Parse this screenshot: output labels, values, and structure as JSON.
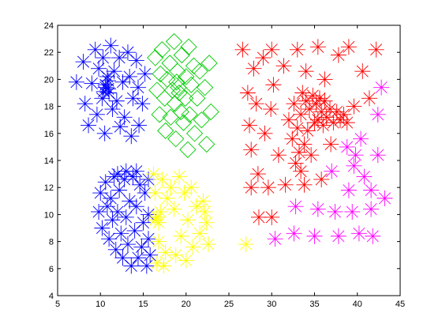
{
  "chart_data": {
    "type": "scatter",
    "title": "",
    "xlabel": "",
    "ylabel": "",
    "xlim": [
      5,
      45
    ],
    "ylim": [
      4,
      24
    ],
    "xticks": [
      5,
      10,
      15,
      20,
      25,
      30,
      35,
      40,
      45
    ],
    "yticks": [
      4,
      6,
      8,
      10,
      12,
      14,
      16,
      18,
      20,
      22,
      24
    ],
    "grid": false,
    "box": true,
    "series": [
      {
        "color": "#0000ff",
        "marker": "asterisk",
        "points": [
          [
            7.2,
            19.8
          ],
          [
            8.0,
            21.3
          ],
          [
            8.2,
            18.2
          ],
          [
            8.6,
            16.6
          ],
          [
            9.0,
            19.7
          ],
          [
            9.4,
            22.2
          ],
          [
            9.6,
            17.4
          ],
          [
            9.8,
            20.8
          ],
          [
            10.2,
            18.6
          ],
          [
            10.3,
            21.6
          ],
          [
            10.5,
            16.0
          ],
          [
            10.6,
            19.4
          ],
          [
            10.8,
            20.2
          ],
          [
            11.0,
            19.0
          ],
          [
            11.2,
            22.5
          ],
          [
            11.4,
            17.8
          ],
          [
            11.6,
            20.6
          ],
          [
            11.9,
            18.4
          ],
          [
            12.2,
            21.6
          ],
          [
            12.3,
            16.5
          ],
          [
            12.6,
            19.8
          ],
          [
            12.8,
            17.2
          ],
          [
            13.2,
            22.0
          ],
          [
            13.4,
            20.2
          ],
          [
            13.6,
            15.8
          ],
          [
            13.8,
            18.6
          ],
          [
            14.2,
            21.4
          ],
          [
            14.4,
            19.4
          ],
          [
            14.5,
            16.6
          ],
          [
            14.9,
            18.2
          ],
          [
            15.2,
            20.4
          ],
          [
            10.6,
            19.6
          ],
          [
            10.9,
            19.9
          ],
          [
            10.4,
            19.1
          ],
          [
            10.9,
            19.3
          ]
        ]
      },
      {
        "color": "#00cc00",
        "marker": "diamond",
        "points": [
          [
            16.4,
            21.6
          ],
          [
            16.6,
            19.2
          ],
          [
            16.9,
            17.4
          ],
          [
            17.0,
            20.4
          ],
          [
            17.2,
            22.2
          ],
          [
            17.5,
            18.6
          ],
          [
            17.6,
            16.2
          ],
          [
            17.8,
            20.0
          ],
          [
            18.1,
            21.2
          ],
          [
            18.2,
            17.2
          ],
          [
            18.4,
            19.2
          ],
          [
            18.6,
            22.8
          ],
          [
            18.7,
            18.2
          ],
          [
            18.8,
            15.6
          ],
          [
            19.0,
            20.6
          ],
          [
            19.2,
            19.0
          ],
          [
            19.4,
            17.6
          ],
          [
            19.5,
            21.8
          ],
          [
            19.7,
            16.8
          ],
          [
            19.9,
            18.6
          ],
          [
            20.0,
            20.2
          ],
          [
            20.2,
            14.8
          ],
          [
            20.3,
            22.4
          ],
          [
            20.4,
            17.4
          ],
          [
            20.6,
            19.6
          ],
          [
            20.9,
            21.0
          ],
          [
            21.0,
            16.0
          ],
          [
            21.3,
            18.6
          ],
          [
            21.6,
            20.6
          ],
          [
            21.8,
            17.0
          ],
          [
            22.2,
            19.4
          ],
          [
            22.4,
            15.2
          ],
          [
            22.7,
            21.2
          ],
          [
            22.9,
            17.6
          ],
          [
            19.1,
            19.4
          ],
          [
            18.9,
            19.8
          ]
        ]
      },
      {
        "color": "#ff0000",
        "marker": "asterisk",
        "points": [
          [
            26.6,
            22.2
          ],
          [
            27.2,
            19.0
          ],
          [
            27.4,
            16.6
          ],
          [
            27.6,
            14.8
          ],
          [
            27.6,
            12.0
          ],
          [
            27.9,
            20.8
          ],
          [
            28.2,
            18.2
          ],
          [
            28.4,
            13.0
          ],
          [
            28.5,
            9.8
          ],
          [
            29.0,
            21.6
          ],
          [
            29.2,
            16.0
          ],
          [
            29.6,
            12.0
          ],
          [
            29.9,
            17.8
          ],
          [
            30.0,
            22.2
          ],
          [
            30.2,
            19.6
          ],
          [
            30.0,
            9.8
          ],
          [
            30.8,
            14.4
          ],
          [
            31.6,
            12.2
          ],
          [
            31.4,
            21.0
          ],
          [
            33.0,
            22.2
          ],
          [
            33.8,
            12.2
          ],
          [
            34.0,
            20.6
          ],
          [
            35.4,
            22.4
          ],
          [
            35.8,
            12.6
          ],
          [
            36.2,
            20.0
          ],
          [
            36.9,
            15.2
          ],
          [
            37.8,
            21.8
          ],
          [
            39.0,
            22.4
          ],
          [
            39.6,
            18.0
          ],
          [
            40.6,
            20.6
          ],
          [
            41.4,
            18.6
          ],
          [
            42.2,
            22.2
          ],
          [
            32.0,
            17.0
          ],
          [
            32.4,
            15.6
          ],
          [
            32.6,
            18.2
          ],
          [
            33.0,
            16.4
          ],
          [
            33.2,
            14.6
          ],
          [
            33.4,
            17.4
          ],
          [
            33.6,
            19.0
          ],
          [
            33.8,
            15.2
          ],
          [
            34.0,
            18.4
          ],
          [
            34.2,
            16.2
          ],
          [
            34.4,
            17.8
          ],
          [
            34.6,
            14.4
          ],
          [
            34.8,
            18.8
          ],
          [
            35.0,
            16.8
          ],
          [
            35.2,
            18.2
          ],
          [
            35.4,
            17.0
          ],
          [
            35.6,
            18.6
          ],
          [
            35.8,
            17.6
          ],
          [
            36.0,
            16.6
          ],
          [
            36.2,
            18.4
          ],
          [
            36.4,
            17.2
          ],
          [
            36.8,
            17.8
          ],
          [
            37.2,
            16.8
          ],
          [
            37.6,
            17.6
          ],
          [
            38.0,
            17.0
          ],
          [
            38.4,
            17.4
          ],
          [
            38.8,
            16.8
          ],
          [
            32.8,
            13.8
          ],
          [
            33.4,
            13.2
          ]
        ]
      },
      {
        "color": "#ff00ff",
        "marker": "asterisk",
        "points": [
          [
            42.8,
            19.4
          ],
          [
            42.4,
            17.4
          ],
          [
            40.4,
            15.6
          ],
          [
            38.8,
            15.0
          ],
          [
            42.4,
            14.4
          ],
          [
            39.8,
            14.4
          ],
          [
            37.0,
            13.2
          ],
          [
            39.6,
            13.6
          ],
          [
            40.8,
            12.8
          ],
          [
            39.0,
            11.8
          ],
          [
            41.6,
            11.8
          ],
          [
            43.2,
            11.2
          ],
          [
            32.8,
            10.6
          ],
          [
            35.4,
            10.4
          ],
          [
            37.4,
            10.2
          ],
          [
            39.4,
            10.2
          ],
          [
            41.6,
            10.4
          ],
          [
            30.4,
            8.2
          ],
          [
            32.6,
            8.6
          ],
          [
            35.0,
            8.4
          ],
          [
            37.8,
            8.4
          ],
          [
            40.2,
            8.6
          ],
          [
            41.8,
            8.4
          ]
        ]
      },
      {
        "color": "#0000ff",
        "marker": "asterisk",
        "points": [
          [
            9.8,
            10.2
          ],
          [
            10.0,
            11.6
          ],
          [
            10.2,
            9.0
          ],
          [
            10.6,
            12.4
          ],
          [
            10.8,
            10.6
          ],
          [
            11.0,
            8.2
          ],
          [
            11.2,
            11.2
          ],
          [
            11.4,
            9.6
          ],
          [
            11.6,
            12.8
          ],
          [
            11.8,
            7.4
          ],
          [
            12.0,
            10.2
          ],
          [
            12.2,
            11.8
          ],
          [
            12.4,
            8.6
          ],
          [
            12.6,
            6.8
          ],
          [
            12.8,
            12.6
          ],
          [
            13.0,
            9.8
          ],
          [
            13.2,
            7.8
          ],
          [
            13.4,
            11.0
          ],
          [
            13.6,
            6.2
          ],
          [
            13.8,
            12.8
          ],
          [
            14.0,
            8.8
          ],
          [
            14.2,
            10.6
          ],
          [
            14.4,
            6.8
          ],
          [
            14.6,
            12.2
          ],
          [
            14.8,
            7.6
          ],
          [
            15.0,
            9.4
          ],
          [
            15.2,
            11.6
          ],
          [
            15.4,
            6.2
          ],
          [
            15.6,
            8.2
          ],
          [
            15.6,
            10.0
          ],
          [
            15.6,
            12.6
          ],
          [
            15.8,
            7.0
          ],
          [
            12.0,
            13.0
          ],
          [
            13.0,
            13.2
          ],
          [
            14.2,
            13.2
          ]
        ]
      },
      {
        "color": "#ffff00",
        "marker": "asterisk",
        "points": [
          [
            16.2,
            13.0
          ],
          [
            16.4,
            11.6
          ],
          [
            16.6,
            9.8
          ],
          [
            16.8,
            8.0
          ],
          [
            16.6,
            6.4
          ],
          [
            17.2,
            12.6
          ],
          [
            17.4,
            6.2
          ],
          [
            17.8,
            11.2
          ],
          [
            17.6,
            7.2
          ],
          [
            18.2,
            12.0
          ],
          [
            18.6,
            10.4
          ],
          [
            18.8,
            7.0
          ],
          [
            19.2,
            12.8
          ],
          [
            19.4,
            8.4
          ],
          [
            19.8,
            11.6
          ],
          [
            20.0,
            6.6
          ],
          [
            20.2,
            9.6
          ],
          [
            20.6,
            12.0
          ],
          [
            20.8,
            7.6
          ],
          [
            21.2,
            10.6
          ],
          [
            21.6,
            8.6
          ],
          [
            22.0,
            11.0
          ],
          [
            22.4,
            9.4
          ],
          [
            22.6,
            7.8
          ],
          [
            22.2,
            10.2
          ],
          [
            16.8,
            9.4
          ],
          [
            17.0,
            10.2
          ],
          [
            16.4,
            9.6
          ],
          [
            27.0,
            7.8
          ]
        ]
      }
    ]
  }
}
